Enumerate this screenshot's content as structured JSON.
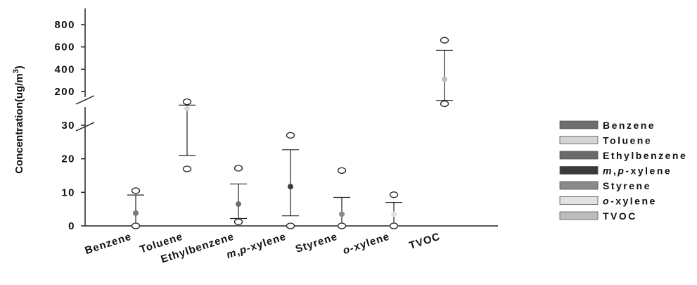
{
  "chart_data": {
    "type": "scatter",
    "title": "",
    "xlabel": "",
    "ylabel": "Concentration(ug/m",
    "ylabel_sup": "3",
    "ylabel_tail": ")",
    "y_axis_break": true,
    "lower_segment": {
      "ylim": [
        0,
        30
      ],
      "ticks": [
        "0",
        "10",
        "20",
        "30"
      ]
    },
    "upper_segment": {
      "ylim": [
        120,
        880
      ],
      "ticks": [
        "200",
        "400",
        "600",
        "800"
      ]
    },
    "categories": [
      {
        "label": "Benzene",
        "parts": []
      },
      {
        "label": "Toluene",
        "parts": []
      },
      {
        "label": "Ethylbenzene",
        "parts": []
      },
      {
        "label": ",",
        "parts": [
          {
            "text": "m",
            "italic": true
          },
          {
            "text": ",",
            "italic": false
          },
          {
            "text": "p",
            "italic": true
          },
          {
            "text": "-xylene",
            "italic": false
          }
        ]
      },
      {
        "label": "Styrene",
        "parts": []
      },
      {
        "label": "-xylene",
        "parts": [
          {
            "text": "o",
            "italic": true
          },
          {
            "text": "-xylene",
            "italic": false
          }
        ]
      },
      {
        "label": "TVOC",
        "parts": []
      }
    ],
    "series": [
      {
        "name": "Benzene",
        "color": "#7a7a7a",
        "mean": 3.8,
        "err_low": 0,
        "err_high": 9.2,
        "min": 0,
        "max": 10.5,
        "segment": "lower"
      },
      {
        "name": "Toluene",
        "color": "#d6d6d6",
        "mean": 35,
        "err_low": 21,
        "err_high": 36,
        "min": 17,
        "max": 37,
        "segment": "lower"
      },
      {
        "name": "Ethylbenzene",
        "color": "#6e6e6e",
        "mean": 6.5,
        "err_low": 2.2,
        "err_high": 12.5,
        "min": 1.2,
        "max": 17.2,
        "segment": "lower"
      },
      {
        "name": "m,p-xylene",
        "color": "#3c3c3c",
        "mean": 11.7,
        "err_low": 3,
        "err_high": 22.7,
        "min": 0,
        "max": 27,
        "segment": "lower"
      },
      {
        "name": "Styrene",
        "color": "#8c8c8c",
        "mean": 3.5,
        "err_low": 0,
        "err_high": 8.5,
        "min": 0,
        "max": 16.5,
        "segment": "lower"
      },
      {
        "name": "o-xylene",
        "color": "#e0e0e0",
        "mean": 3.5,
        "err_low": 0,
        "err_high": 7,
        "min": 0,
        "max": 9.3,
        "segment": "lower"
      },
      {
        "name": "TVOC",
        "color": "#bdbdbd",
        "mean": 310,
        "err_low": 120,
        "err_high": 570,
        "min": 90,
        "max": 660,
        "segment": "upper"
      }
    ],
    "legend": {
      "placement": "right",
      "items": [
        {
          "label": "Benzene",
          "color": "#6e6e6e",
          "parts": []
        },
        {
          "label": "Toluene",
          "color": "#d4d4d4",
          "parts": []
        },
        {
          "label": "Ethylbenzene",
          "color": "#6a6a6a",
          "parts": []
        },
        {
          "label": ",",
          "color": "#3a3a3a",
          "parts": [
            {
              "text": "m",
              "italic": true
            },
            {
              "text": ",",
              "italic": false
            },
            {
              "text": "p",
              "italic": true
            },
            {
              "text": "-xylene",
              "italic": false
            }
          ]
        },
        {
          "label": "Styrene",
          "color": "#8a8a8a",
          "parts": []
        },
        {
          "label": "-xylene",
          "color": "#e2e2e2",
          "parts": [
            {
              "text": "o",
              "italic": true
            },
            {
              "text": "-xylene",
              "italic": false
            }
          ]
        },
        {
          "label": "TVOC",
          "color": "#bcbcbc",
          "parts": []
        }
      ]
    },
    "grid": false
  }
}
